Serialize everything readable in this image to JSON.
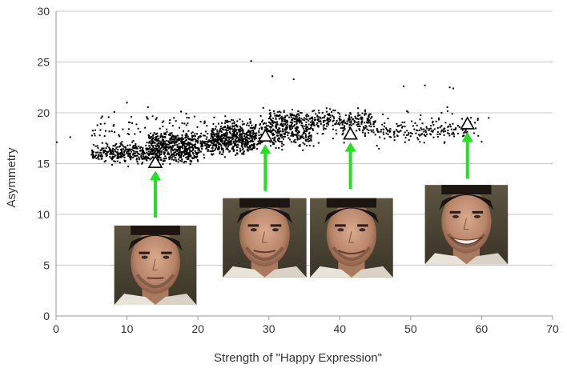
{
  "chart_data": {
    "type": "scatter",
    "title": "",
    "xlabel": "Strength of \"Happy Expression\"",
    "ylabel": "Asymmetry",
    "xlim": [
      0,
      70
    ],
    "ylim": [
      0,
      30
    ],
    "x_ticks": [
      0,
      10,
      20,
      30,
      40,
      50,
      60,
      70
    ],
    "y_ticks": [
      0,
      5,
      10,
      15,
      20,
      25,
      30
    ],
    "grid": "horizontal",
    "legend": "none",
    "point_color": "#000000",
    "grid_color": "#c8c8c8",
    "arrow_color": "#22e022",
    "clusters": [
      {
        "x_range": [
          5,
          20
        ],
        "y_center": 16.0,
        "y_spread": 1.4,
        "count": 520
      },
      {
        "x_range": [
          13,
          28
        ],
        "y_center": 17.0,
        "y_spread": 1.6,
        "count": 650
      },
      {
        "x_range": [
          22,
          36
        ],
        "y_center": 18.0,
        "y_spread": 2.0,
        "count": 520
      },
      {
        "x_range": [
          30,
          45
        ],
        "y_center": 19.3,
        "y_spread": 1.3,
        "count": 320
      },
      {
        "x_range": [
          40,
          58
        ],
        "y_center": 18.2,
        "y_spread": 1.0,
        "count": 150
      },
      {
        "x_range": [
          5,
          60
        ],
        "y_center": 18.5,
        "y_spread": 2.6,
        "count": 250
      }
    ],
    "extra_points": [
      {
        "x": 27.5,
        "y": 25.1
      },
      {
        "x": 49.0,
        "y": 22.6
      },
      {
        "x": 52.0,
        "y": 22.7
      },
      {
        "x": 55.5,
        "y": 22.5
      },
      {
        "x": 56.0,
        "y": 22.4
      },
      {
        "x": 61.0,
        "y": 19.5
      },
      {
        "x": 0.1,
        "y": 17.1
      },
      {
        "x": 2.0,
        "y": 17.6
      },
      {
        "x": 10.0,
        "y": 21.0
      },
      {
        "x": 33.5,
        "y": 23.3
      },
      {
        "x": 30.5,
        "y": 23.6
      }
    ],
    "markers": [
      {
        "name": "marker-1",
        "x": 14.0,
        "y": 15.1,
        "arrow_from_y": 9.7
      },
      {
        "name": "marker-2",
        "x": 29.5,
        "y": 17.7,
        "arrow_from_y": 12.3
      },
      {
        "name": "marker-3",
        "x": 41.5,
        "y": 17.9,
        "arrow_from_y": 12.5
      },
      {
        "name": "marker-4",
        "x": 58.0,
        "y": 18.9,
        "arrow_from_y": 13.5
      }
    ],
    "face_images": [
      {
        "name": "face-photo-1",
        "x_range": [
          8.2,
          19.8
        ],
        "y_range": [
          1.1,
          8.9
        ]
      },
      {
        "name": "face-photo-2",
        "x_range": [
          23.5,
          35.3
        ],
        "y_range": [
          3.8,
          11.6
        ]
      },
      {
        "name": "face-photo-3",
        "x_range": [
          35.8,
          47.5
        ],
        "y_range": [
          3.8,
          11.6
        ]
      },
      {
        "name": "face-photo-4",
        "x_range": [
          52.0,
          63.7
        ],
        "y_range": [
          5.1,
          12.9
        ]
      }
    ]
  }
}
